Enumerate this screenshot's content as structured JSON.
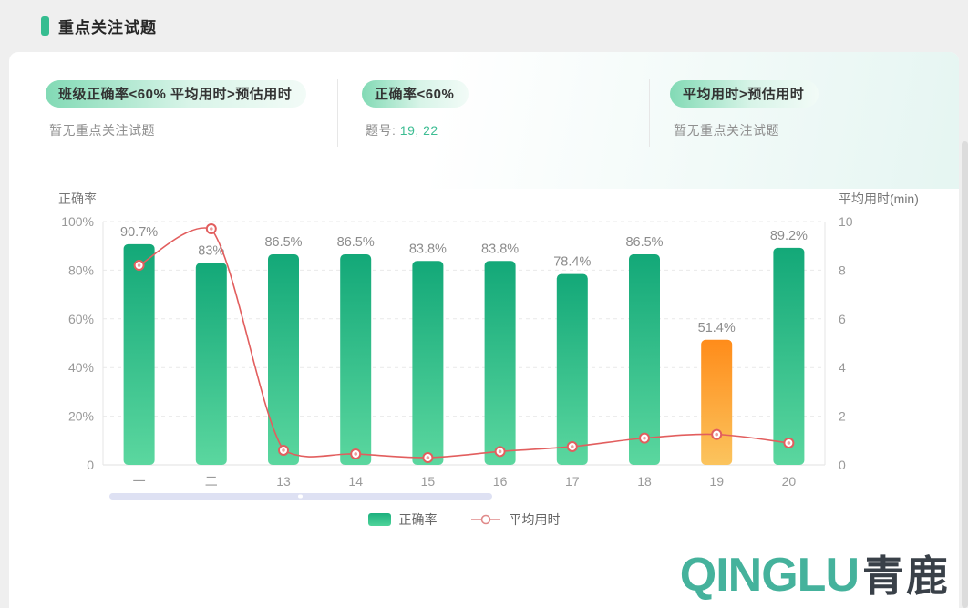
{
  "page": {
    "title": "重点关注试题"
  },
  "sections": [
    {
      "badge": "班级正确率<60%  平均用时>预估用时",
      "content": "暂无重点关注试题"
    },
    {
      "badge": "正确率<60%",
      "qnum_label": "题号:",
      "qnum_values": "19, 22"
    },
    {
      "badge": "平均用时>预估用时",
      "content": "暂无重点关注试题"
    }
  ],
  "chart_data": {
    "type": "bar",
    "categories": [
      "一",
      "二",
      "13",
      "14",
      "15",
      "16",
      "17",
      "18",
      "19",
      "20"
    ],
    "series": [
      {
        "name": "正确率",
        "type": "bar",
        "values": [
          90.7,
          83,
          86.5,
          86.5,
          83.8,
          83.8,
          78.4,
          86.5,
          51.4,
          89.2
        ],
        "labels": [
          "90.7%",
          "83%",
          "86.5%",
          "86.5%",
          "83.8%",
          "83.8%",
          "78.4%",
          "86.5%",
          "51.4%",
          "89.2%"
        ]
      },
      {
        "name": "平均用时",
        "type": "line",
        "values": [
          8.2,
          9.7,
          0.6,
          0.45,
          0.3,
          0.55,
          0.75,
          1.1,
          1.25,
          0.9
        ]
      }
    ],
    "left_axis": {
      "title": "正确率",
      "ticks": [
        "100%",
        "80%",
        "60%",
        "40%",
        "20%",
        "0"
      ],
      "min": 0,
      "max": 100
    },
    "right_axis": {
      "title": "平均用时(min)",
      "ticks": [
        "10",
        "8",
        "6",
        "4",
        "2",
        "0"
      ],
      "min": 0,
      "max": 10
    },
    "highlight_index": 8,
    "legend": [
      "正确率",
      "平均用时"
    ],
    "grid": true,
    "legend_position": "bottom",
    "colors": {
      "bar_top": "#13a878",
      "bar_bottom": "#5bd79f",
      "bar_highlight_top": "#ff8c1a",
      "bar_highlight_bottom": "#fbc45e",
      "line": "#e25e5e",
      "label_text": "#8c8c8c",
      "tick_text": "#999999",
      "datazoom": "#dee1f3"
    }
  },
  "logo": {
    "latin": "QINGLU",
    "cjk": "青鹿"
  }
}
